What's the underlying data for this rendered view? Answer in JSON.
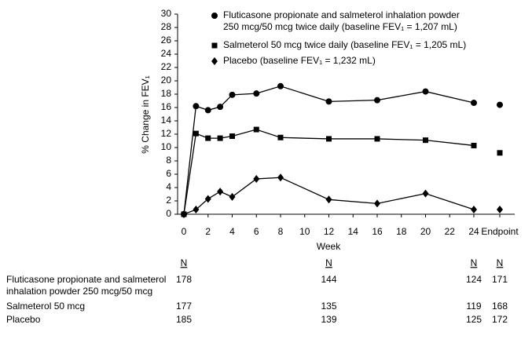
{
  "chart_data": {
    "type": "line",
    "y_label": "% Change in FEV₁",
    "x_label": "Week",
    "x": [
      0,
      1,
      2,
      3,
      4,
      6,
      8,
      12,
      16,
      20,
      24
    ],
    "xlim": [
      0,
      24
    ],
    "xticks": [
      0,
      2,
      4,
      6,
      8,
      10,
      12,
      14,
      16,
      18,
      20,
      22,
      24
    ],
    "endpoint_label": "Endpoint",
    "ylim": [
      0,
      30
    ],
    "yticks": [
      0,
      2,
      4,
      6,
      8,
      10,
      12,
      14,
      16,
      18,
      20,
      22,
      24,
      26,
      28,
      30
    ],
    "series": [
      {
        "name": "Fluticasone propionate and salmeterol inhalation powder\n250 mcg/50 mcg twice daily (baseline FEV₁ = 1,207 mL)",
        "color": "#000000",
        "marker": "circle",
        "values": [
          0,
          16.2,
          15.6,
          16.1,
          17.9,
          18.1,
          19.2,
          16.9,
          17.1,
          18.4,
          16.7
        ],
        "endpoint": 16.4
      },
      {
        "name": "Salmeterol 50 mcg twice daily (baseline FEV₁ = 1,205 mL)",
        "color": "#000000",
        "marker": "square",
        "values": [
          0,
          12.1,
          11.4,
          11.4,
          11.7,
          12.7,
          11.5,
          11.3,
          11.3,
          11.1,
          10.3
        ],
        "endpoint": 9.2
      },
      {
        "name": "Placebo (baseline FEV₁ = 1,232 mL)",
        "color": "#000000",
        "marker": "diamond",
        "values": [
          0,
          0.7,
          2.3,
          3.4,
          2.6,
          5.3,
          5.5,
          2.2,
          1.6,
          3.1,
          0.7
        ],
        "endpoint": 0.7
      }
    ],
    "n_table": {
      "header": "N",
      "rows": [
        {
          "label": "Fluticasone propionate and salmeterol\ninhalation powder 250 mcg/50 mcg",
          "values": [
            178,
            144,
            124,
            171
          ]
        },
        {
          "label": "Salmeterol 50 mcg",
          "values": [
            177,
            135,
            119,
            168
          ]
        },
        {
          "label": "Placebo",
          "values": [
            185,
            139,
            125,
            172
          ]
        }
      ]
    }
  }
}
